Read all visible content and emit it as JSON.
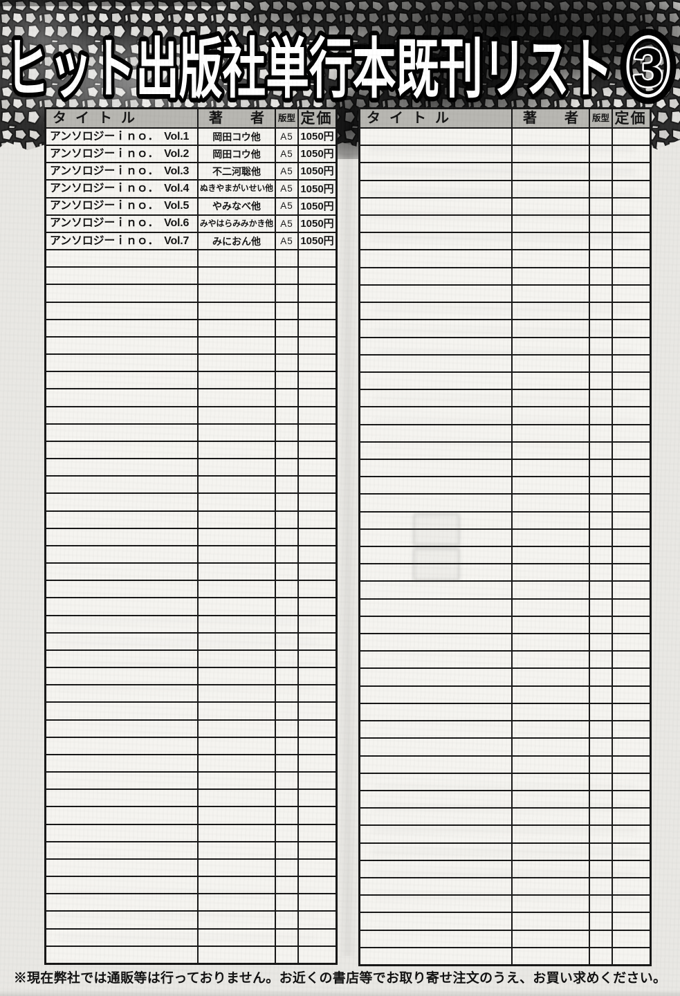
{
  "banner": {
    "title": "ヒット出版社単行本既刊リスト",
    "badge_number": "3"
  },
  "table_headers": {
    "title": "タイトル",
    "author": "著者",
    "format": "版型",
    "price": "定価"
  },
  "left_table": {
    "filled_rows": [
      {
        "title": "アンソロジーｉｎｏ．　Vol.1",
        "author": "岡田コウ他",
        "format": "A5",
        "price": "1050円"
      },
      {
        "title": "アンソロジーｉｎｏ．　Vol.2",
        "author": "岡田コウ他",
        "format": "A5",
        "price": "1050円"
      },
      {
        "title": "アンソロジーｉｎｏ．　Vol.3",
        "author": "不二河聡他",
        "format": "A5",
        "price": "1050円"
      },
      {
        "title": "アンソロジーｉｎｏ．　Vol.4",
        "author": "ぬきやまがいせい他",
        "format": "A5",
        "price": "1050円"
      },
      {
        "title": "アンソロジーｉｎｏ．　Vol.5",
        "author": "やみなべ他",
        "format": "A5",
        "price": "1050円"
      },
      {
        "title": "アンソロジーｉｎｏ．　Vol.6",
        "author": "みやはらみみかき他",
        "format": "A5",
        "price": "1050円"
      },
      {
        "title": "アンソロジーｉｎｏ．　Vol.7",
        "author": "みにおん他",
        "format": "A5",
        "price": "1050円"
      }
    ],
    "empty_row_count": 41
  },
  "right_table": {
    "filled_rows": [],
    "empty_row_count": 48
  },
  "footer_notice": "※現在弊社では通販等は行っておりません。お近くの書店等でお取り寄せ注文のうえ、お買い求めください。"
}
